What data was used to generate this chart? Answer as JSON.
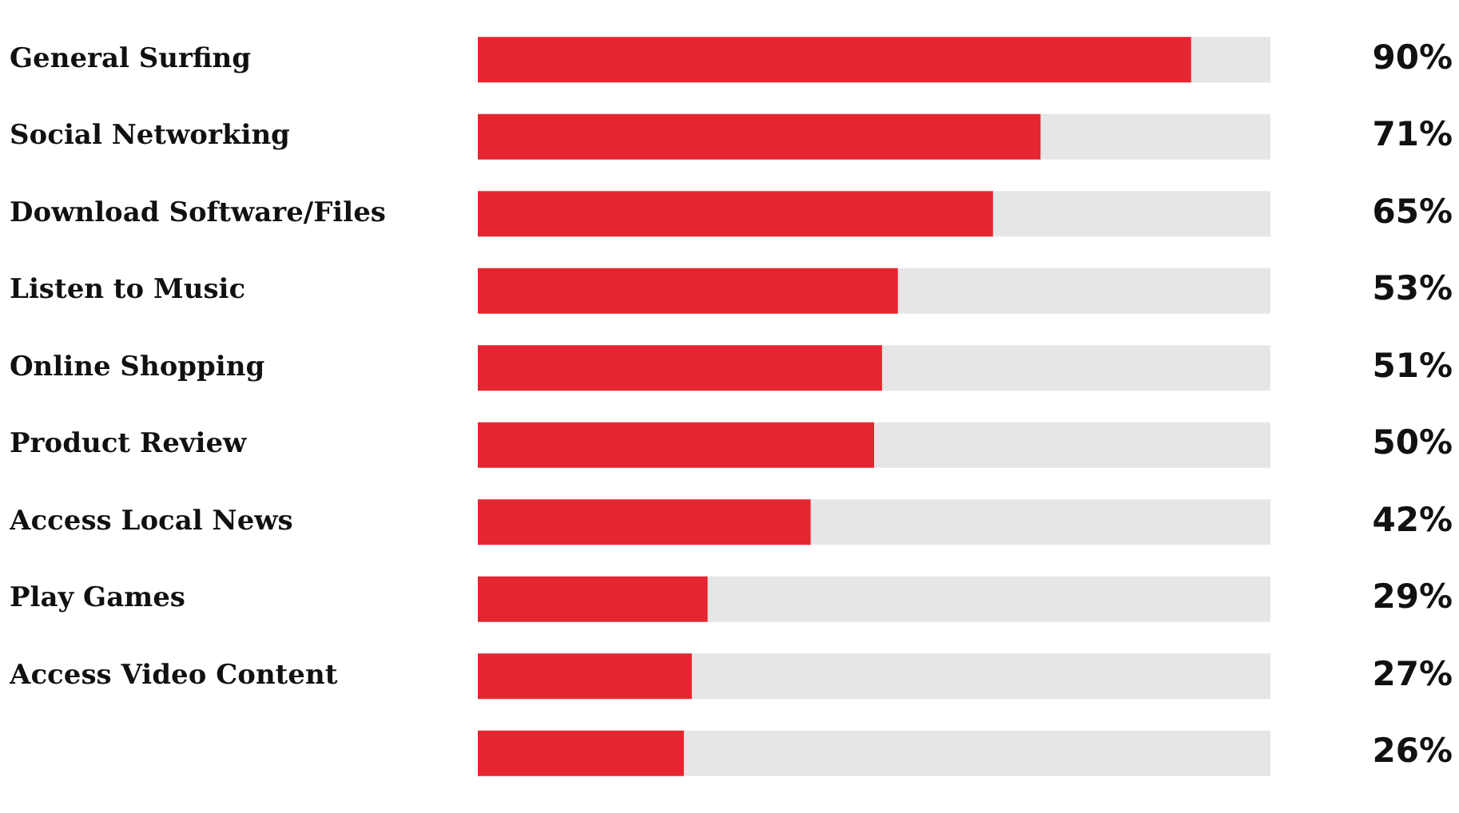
{
  "chart_data": {
    "type": "bar",
    "orientation": "horizontal",
    "stacked": true,
    "categories": [
      "General Surfing",
      "Social Networking",
      "Download Software/Files",
      "Listen to Music",
      "Online Shopping",
      "Product Review",
      "Access Local News",
      "Play Games",
      "Access Video Content",
      null
    ],
    "series": [
      {
        "color": "#e52630",
        "values": [
          90,
          71,
          65,
          53,
          51,
          50,
          42,
          29,
          27,
          26
        ],
        "value_labels": [
          "90%",
          "71%",
          "65%",
          "53%",
          "51%",
          "50%",
          "42%",
          "29%",
          "27%",
          "26%"
        ]
      },
      {
        "color": "#e6e6e6",
        "values": [
          10,
          29,
          35,
          47,
          49,
          50,
          58,
          71,
          73,
          74
        ]
      }
    ],
    "xlim": [
      0,
      100
    ],
    "tick_labels": "y",
    "legend": false
  }
}
